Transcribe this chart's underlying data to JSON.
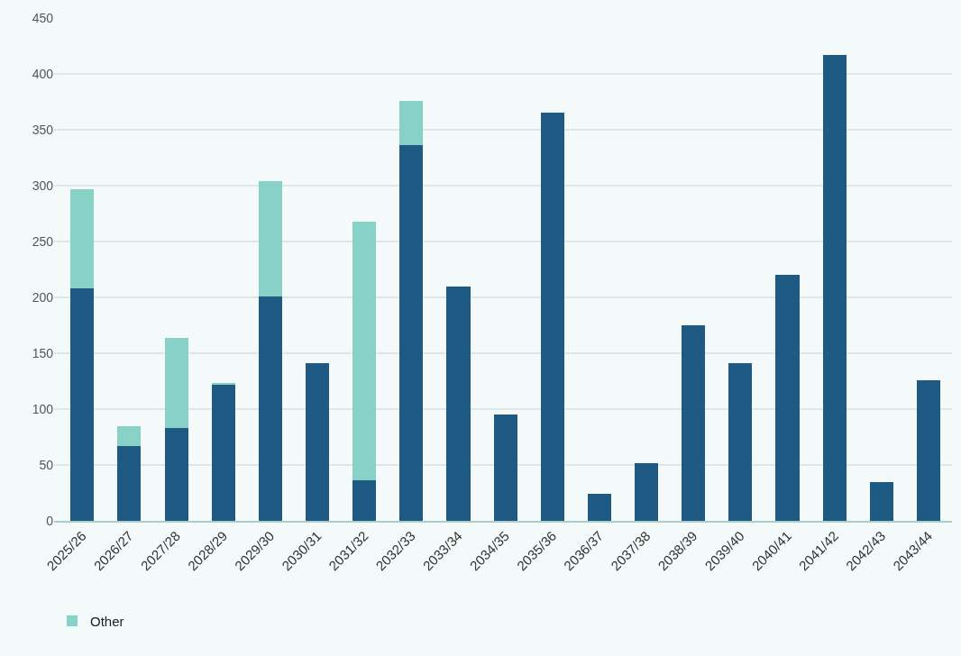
{
  "chart_data": {
    "type": "bar",
    "stacked": true,
    "categories": [
      "2025/26",
      "2026/27",
      "2027/28",
      "2028/29",
      "2029/30",
      "2030/31",
      "2031/32",
      "2032/33",
      "2033/34",
      "2034/35",
      "2035/36",
      "2036/37",
      "2037/38",
      "2038/39",
      "2039/40",
      "2040/41",
      "2041/42",
      "2042/43",
      "2043/44"
    ],
    "series": [
      {
        "color": "#1f5a85",
        "values": [
          208,
          67,
          83,
          122,
          201,
          141,
          36,
          336,
          210,
          95,
          365,
          24,
          52,
          175,
          141,
          220,
          417,
          35,
          126
        ]
      },
      {
        "name": "Other",
        "color": "#88d1c6",
        "values": [
          89,
          18,
          81,
          1,
          103,
          null,
          232,
          40,
          null,
          null,
          null,
          null,
          null,
          null,
          null,
          null,
          null,
          null,
          null
        ]
      }
    ],
    "ylim": [
      0,
      450
    ],
    "yticks": [
      0,
      50,
      100,
      150,
      200,
      250,
      300,
      350,
      400,
      450
    ],
    "grid": "y",
    "legend": "bottom left"
  }
}
